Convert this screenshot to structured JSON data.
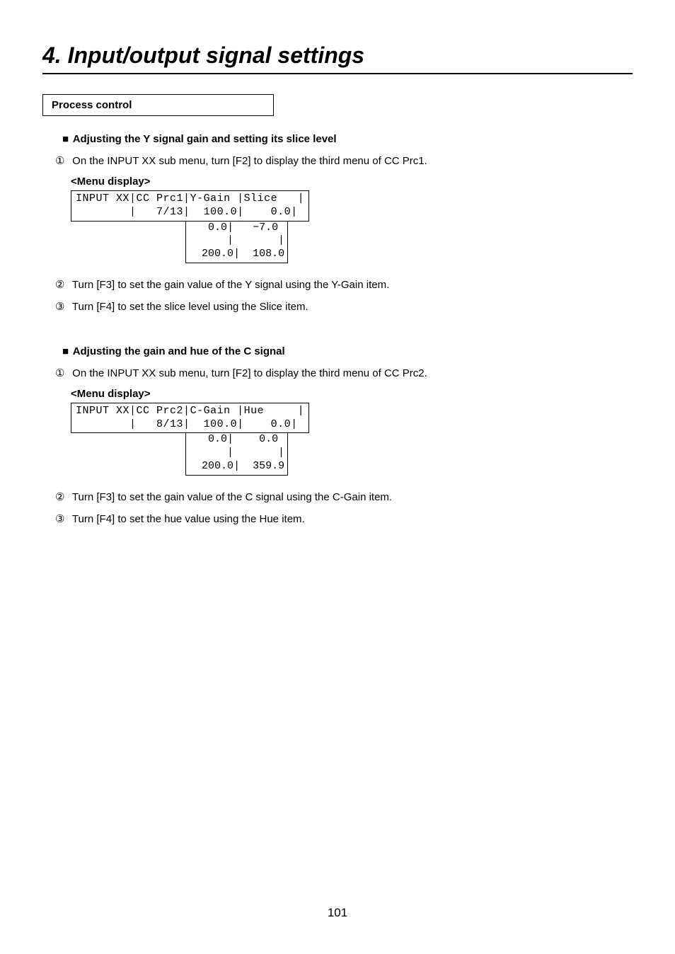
{
  "chapter_title": "4. Input/output signal settings",
  "box_label": "Process control",
  "section1": {
    "heading": "Adjusting the Y signal gain and setting its slice level",
    "step1": "On the INPUT XX sub menu, turn [F2] to display the third menu of CC Prc1.",
    "menu_label": "<Menu display>",
    "menu": {
      "col1_h": "INPUT XX",
      "col2_h": "CC Prc1",
      "col3_h": "Y-Gain",
      "col4_h": "Slice",
      "col2_v": "7/13",
      "col3_v": "100.0",
      "col4_v": "0.0",
      "range_col3_min": "0.0",
      "range_col3_max": "200.0",
      "range_col4_min": "−7.0",
      "range_col4_max": "108.0"
    },
    "step2": "Turn [F3] to set the gain value of the Y signal using the Y-Gain item.",
    "step3": "Turn [F4] to set the slice level using the Slice item."
  },
  "section2": {
    "heading": "Adjusting the gain and hue of the C signal",
    "step1": "On the INPUT XX sub menu, turn [F2] to display the third menu of CC Prc2.",
    "menu_label": "<Menu display>",
    "menu": {
      "col1_h": "INPUT XX",
      "col2_h": "CC Prc2",
      "col3_h": "C-Gain",
      "col4_h": "Hue",
      "col2_v": "8/13",
      "col3_v": "100.0",
      "col4_v": "0.0",
      "range_col3_min": "0.0",
      "range_col3_max": "200.0",
      "range_col4_min": "0.0",
      "range_col4_max": "359.9"
    },
    "step2": "Turn [F3] to set the gain value of the C signal using the C-Gain item.",
    "step3": "Turn [F4] to set the hue value using the Hue item."
  },
  "page_number": "101",
  "glyphs": {
    "square": "■",
    "circ1": "①",
    "circ2": "②",
    "circ3": "③"
  }
}
